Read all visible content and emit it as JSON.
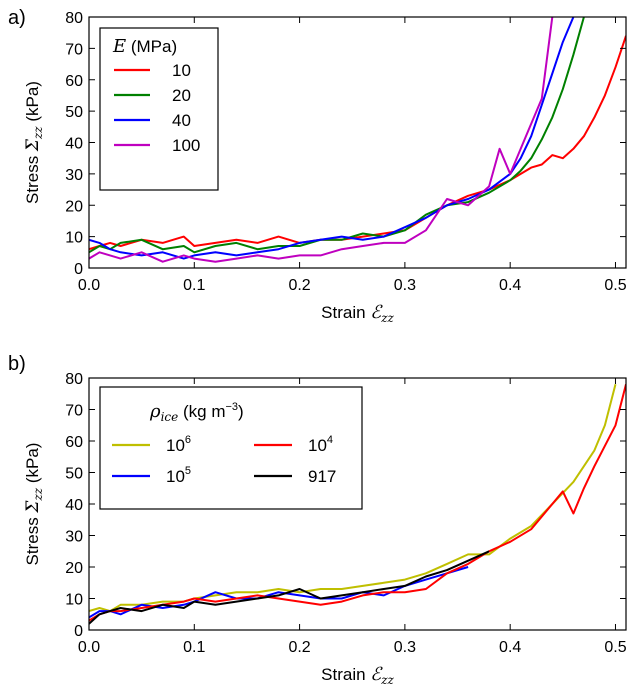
{
  "chart_data": [
    {
      "type": "line",
      "panel_label": "a)",
      "xlabel": "Strain",
      "xlabel_math": "ℰ",
      "xlabel_sub": "zz",
      "ylabel": "Stress",
      "ylabel_math": "Σ",
      "ylabel_sub": "zz",
      "ylabel_unit": "(kPa)",
      "xlim": [
        0,
        0.51
      ],
      "ylim": [
        0,
        80
      ],
      "xticks": [
        "0.0",
        "0.1",
        "0.2",
        "0.3",
        "0.4",
        "0.5"
      ],
      "yticks": [
        "0",
        "10",
        "20",
        "30",
        "40",
        "50",
        "60",
        "70",
        "80"
      ],
      "legend": {
        "title_math": "E",
        "title_unit": "(MPa)",
        "position": "upper-left",
        "columns": 1
      },
      "series": [
        {
          "name": "10",
          "color": "#ff0000",
          "x": [
            0.0,
            0.01,
            0.02,
            0.03,
            0.05,
            0.07,
            0.09,
            0.1,
            0.12,
            0.14,
            0.16,
            0.18,
            0.2,
            0.22,
            0.24,
            0.26,
            0.28,
            0.3,
            0.32,
            0.34,
            0.36,
            0.38,
            0.4,
            0.41,
            0.42,
            0.43,
            0.44,
            0.45,
            0.46,
            0.47,
            0.48,
            0.49,
            0.5,
            0.51
          ],
          "y": [
            6,
            7,
            8,
            7,
            9,
            8,
            10,
            7,
            8,
            9,
            8,
            10,
            8,
            9,
            9,
            10,
            11,
            12,
            16,
            20,
            23,
            25,
            28,
            30,
            32,
            33,
            36,
            35,
            38,
            42,
            48,
            55,
            64,
            74
          ]
        },
        {
          "name": "20",
          "color": "#008000",
          "x": [
            0.0,
            0.01,
            0.02,
            0.03,
            0.05,
            0.07,
            0.09,
            0.1,
            0.12,
            0.14,
            0.16,
            0.18,
            0.2,
            0.22,
            0.24,
            0.26,
            0.28,
            0.3,
            0.32,
            0.34,
            0.36,
            0.38,
            0.4,
            0.41,
            0.42,
            0.43,
            0.44,
            0.45,
            0.46,
            0.47
          ],
          "y": [
            5,
            7,
            6,
            8,
            9,
            6,
            7,
            5,
            7,
            8,
            6,
            7,
            7,
            9,
            9,
            11,
            10,
            12,
            17,
            20,
            21,
            24,
            28,
            31,
            35,
            41,
            48,
            57,
            68,
            80
          ]
        },
        {
          "name": "40",
          "color": "#0000ff",
          "x": [
            0.0,
            0.01,
            0.02,
            0.03,
            0.05,
            0.07,
            0.09,
            0.1,
            0.12,
            0.14,
            0.16,
            0.18,
            0.2,
            0.22,
            0.24,
            0.26,
            0.28,
            0.3,
            0.32,
            0.34,
            0.36,
            0.38,
            0.4,
            0.41,
            0.42,
            0.43,
            0.44,
            0.45,
            0.46
          ],
          "y": [
            9,
            8,
            6,
            5,
            4,
            5,
            3,
            4,
            5,
            4,
            5,
            6,
            8,
            9,
            10,
            9,
            10,
            13,
            16,
            20,
            22,
            25,
            30,
            35,
            42,
            52,
            62,
            72,
            80
          ]
        },
        {
          "name": "100",
          "color": "#bf00bf",
          "x": [
            0.0,
            0.01,
            0.02,
            0.03,
            0.05,
            0.07,
            0.09,
            0.1,
            0.12,
            0.14,
            0.16,
            0.18,
            0.2,
            0.22,
            0.24,
            0.26,
            0.28,
            0.3,
            0.32,
            0.34,
            0.36,
            0.38,
            0.39,
            0.4,
            0.41,
            0.42,
            0.43,
            0.44
          ],
          "y": [
            3,
            5,
            4,
            3,
            5,
            2,
            4,
            3,
            2,
            3,
            4,
            3,
            4,
            4,
            6,
            7,
            8,
            8,
            12,
            22,
            20,
            26,
            38,
            30,
            38,
            46,
            54,
            80
          ]
        }
      ]
    },
    {
      "type": "line",
      "panel_label": "b)",
      "xlabel": "Strain",
      "xlabel_math": "ℰ",
      "xlabel_sub": "zz",
      "ylabel": "Stress",
      "ylabel_math": "Σ",
      "ylabel_sub": "zz",
      "ylabel_unit": "(kPa)",
      "xlim": [
        0,
        0.51
      ],
      "ylim": [
        0,
        80
      ],
      "xticks": [
        "0.0",
        "0.1",
        "0.2",
        "0.3",
        "0.4",
        "0.5"
      ],
      "yticks": [
        "0",
        "10",
        "20",
        "30",
        "40",
        "50",
        "60",
        "70",
        "80"
      ],
      "legend": {
        "title_math": "ρ",
        "title_sub": "ice",
        "title_unit": "(kg m",
        "title_exp": "−3",
        "title_close": ")",
        "position": "upper-left",
        "columns": 2
      },
      "series": [
        {
          "name": "10",
          "name_exp": "6",
          "color": "#bfbf00",
          "x": [
            0.0,
            0.01,
            0.02,
            0.03,
            0.05,
            0.07,
            0.09,
            0.1,
            0.12,
            0.14,
            0.16,
            0.18,
            0.2,
            0.22,
            0.24,
            0.26,
            0.28,
            0.3,
            0.32,
            0.34,
            0.36,
            0.38,
            0.4,
            0.42,
            0.44,
            0.46,
            0.48,
            0.49,
            0.5
          ],
          "y": [
            6,
            7,
            6,
            8,
            8,
            9,
            9,
            10,
            11,
            12,
            12,
            13,
            12,
            13,
            13,
            14,
            15,
            16,
            18,
            21,
            24,
            24,
            29,
            33,
            40,
            47,
            57,
            65,
            78
          ]
        },
        {
          "name": "10",
          "name_exp": "5",
          "color": "#0000ff",
          "x": [
            0.0,
            0.01,
            0.02,
            0.03,
            0.05,
            0.07,
            0.09,
            0.1,
            0.12,
            0.14,
            0.16,
            0.18,
            0.2,
            0.22,
            0.24,
            0.26,
            0.28,
            0.3,
            0.32,
            0.34,
            0.36
          ],
          "y": [
            4,
            6,
            6,
            5,
            8,
            7,
            8,
            9,
            12,
            10,
            10,
            12,
            11,
            10,
            10,
            12,
            11,
            14,
            16,
            18,
            20
          ]
        },
        {
          "name": "10",
          "name_exp": "4",
          "color": "#ff0000",
          "x": [
            0.0,
            0.01,
            0.02,
            0.03,
            0.05,
            0.07,
            0.09,
            0.1,
            0.12,
            0.14,
            0.16,
            0.18,
            0.2,
            0.22,
            0.24,
            0.26,
            0.28,
            0.3,
            0.32,
            0.34,
            0.36,
            0.38,
            0.4,
            0.42,
            0.44,
            0.45,
            0.46,
            0.47,
            0.48,
            0.5,
            0.51
          ],
          "y": [
            3,
            5,
            6,
            6,
            7,
            8,
            9,
            10,
            9,
            10,
            11,
            10,
            9,
            8,
            9,
            11,
            12,
            12,
            13,
            18,
            21,
            25,
            28,
            32,
            40,
            44,
            37,
            45,
            52,
            65,
            78
          ]
        },
        {
          "name": "917",
          "color": "#000000",
          "x": [
            0.0,
            0.01,
            0.02,
            0.03,
            0.05,
            0.07,
            0.09,
            0.1,
            0.12,
            0.14,
            0.16,
            0.18,
            0.2,
            0.22,
            0.24,
            0.26,
            0.28,
            0.3,
            0.32,
            0.34,
            0.36,
            0.38
          ],
          "y": [
            2,
            5,
            6,
            7,
            6,
            8,
            7,
            9,
            8,
            9,
            10,
            11,
            13,
            10,
            11,
            12,
            13,
            14,
            17,
            19,
            22,
            25
          ]
        }
      ]
    }
  ]
}
